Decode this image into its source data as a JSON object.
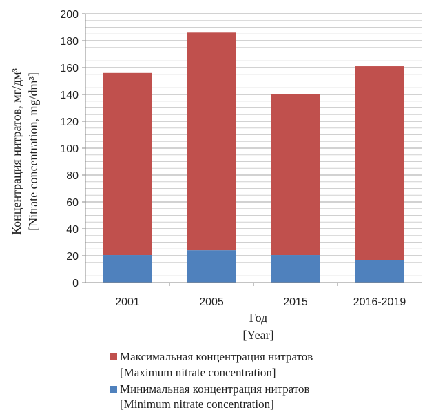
{
  "chart_data": {
    "type": "bar",
    "stacked": true,
    "categories": [
      "2001",
      "2005",
      "2015",
      "2016-2019"
    ],
    "series": [
      {
        "name_ru": "Минимальная концентрация нитратов",
        "name_en": "[Minimum nitrate concentration]",
        "color": "#4f81bd",
        "values": [
          20.5,
          24,
          20.5,
          16.5
        ]
      },
      {
        "name_ru": "Максимальная концентрация нитратов",
        "name_en": "[Maximum nitrate concentration]",
        "color": "#c0504d",
        "values": [
          156,
          186,
          140,
          161
        ]
      }
    ],
    "totals_note": "max values are cumulative bar tops",
    "ylim": [
      0,
      200
    ],
    "yticks": [
      "0",
      "20",
      "40",
      "60",
      "80",
      "100",
      "120",
      "140",
      "160",
      "180",
      "200"
    ],
    "xlabel_ru": "Год",
    "xlabel_en": "[Year]",
    "ylabel_ru": "Концентрация нитратов, мг/дм³",
    "ylabel_en": "[Nitrate concentration, mg/dm³]",
    "grid": true,
    "legend_position": "bottom"
  }
}
